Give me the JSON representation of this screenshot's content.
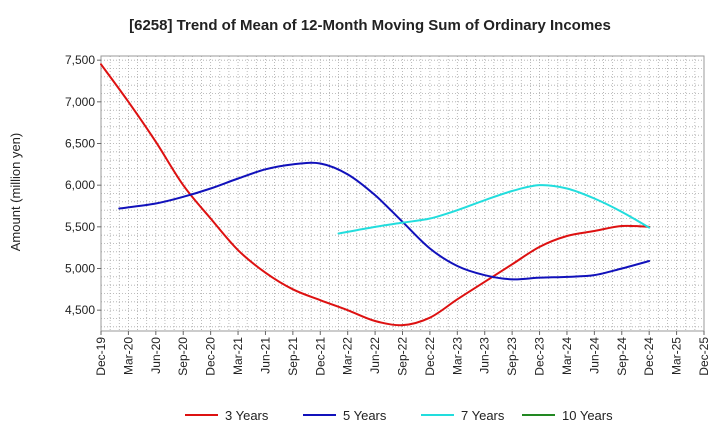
{
  "chart_data": {
    "type": "line",
    "title": "[6258]  Trend of Mean of 12-Month Moving Sum of Ordinary Incomes",
    "ylabel": "Amount (million yen)",
    "xlabel": "",
    "ylim": [
      4250,
      7550
    ],
    "yticks": [
      4500,
      5000,
      5500,
      6000,
      6500,
      7000,
      7500
    ],
    "ytick_labels": [
      "4,500",
      "5,000",
      "5,500",
      "6,000",
      "6,500",
      "7,000",
      "7,500"
    ],
    "xlim": [
      0,
      66
    ],
    "xticks": [
      0,
      3,
      6,
      9,
      12,
      15,
      18,
      21,
      24,
      27,
      30,
      33,
      36,
      39,
      42,
      45,
      48,
      51,
      54,
      57,
      60,
      63,
      66
    ],
    "xtick_labels": [
      "Dec-19",
      "Mar-20",
      "Jun-20",
      "Sep-20",
      "Dec-20",
      "Mar-21",
      "Jun-21",
      "Sep-21",
      "Dec-21",
      "Mar-22",
      "Jun-22",
      "Sep-22",
      "Dec-22",
      "Mar-23",
      "Jun-23",
      "Sep-23",
      "Dec-23",
      "Mar-24",
      "Jun-24",
      "Sep-24",
      "Dec-24",
      "Mar-25",
      "Dec-25"
    ],
    "grid": true,
    "legend_position": "bottom",
    "series": [
      {
        "name": "3 Years",
        "color": "#dd1111",
        "x": [
          0,
          3,
          6,
          9,
          12,
          15,
          18,
          21,
          24,
          27,
          30,
          33,
          36,
          39,
          42,
          45,
          48,
          51,
          54,
          57,
          60
        ],
        "values": [
          7450,
          7000,
          6520,
          6000,
          5600,
          5220,
          4950,
          4750,
          4620,
          4500,
          4370,
          4320,
          4410,
          4630,
          4840,
          5050,
          5260,
          5390,
          5450,
          5510,
          5500
        ]
      },
      {
        "name": "5 Years",
        "color": "#1111bb",
        "x": [
          2,
          6,
          9,
          12,
          15,
          18,
          21,
          24,
          27,
          30,
          33,
          36,
          39,
          42,
          45,
          48,
          51,
          54,
          57,
          60
        ],
        "values": [
          5720,
          5780,
          5860,
          5960,
          6080,
          6190,
          6250,
          6260,
          6130,
          5880,
          5560,
          5240,
          5030,
          4920,
          4870,
          4890,
          4900,
          4920,
          5000,
          5090
        ]
      },
      {
        "name": "7 Years",
        "color": "#22dddd",
        "x": [
          26,
          30,
          33,
          36,
          39,
          42,
          45,
          48,
          51,
          54,
          57,
          60
        ],
        "values": [
          5420,
          5500,
          5550,
          5600,
          5700,
          5820,
          5930,
          6000,
          5960,
          5840,
          5680,
          5490
        ]
      },
      {
        "name": "10 Years",
        "color": "#228822",
        "x": [],
        "values": []
      }
    ]
  }
}
